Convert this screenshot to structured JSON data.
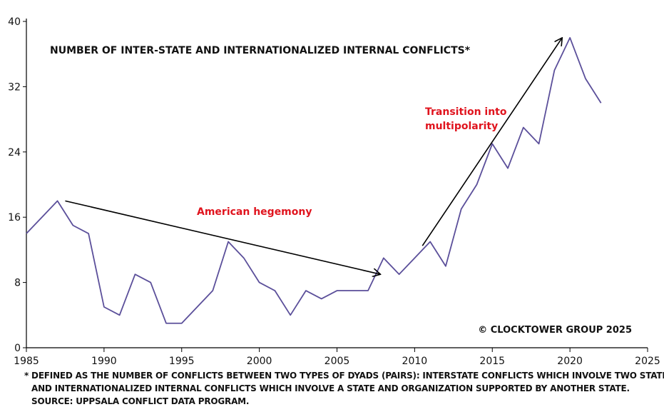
{
  "chart_data": {
    "type": "line",
    "title": "NUMBER OF INTER-STATE AND INTERNATIONALIZED INTERNAL CONFLICTS*",
    "xlabel": "",
    "ylabel": "",
    "xlim": [
      1985,
      2025
    ],
    "ylim": [
      0,
      40
    ],
    "x_ticks": [
      1985,
      1990,
      1995,
      2000,
      2005,
      2010,
      2015,
      2020,
      2025
    ],
    "y_ticks": [
      0,
      8,
      16,
      24,
      32,
      40
    ],
    "grid": false,
    "series": [
      {
        "color": "#5b4f9a",
        "x": [
          1985,
          1986,
          1987,
          1988,
          1989,
          1990,
          1991,
          1992,
          1993,
          1994,
          1995,
          1996,
          1997,
          1998,
          1999,
          2000,
          2001,
          2002,
          2003,
          2004,
          2005,
          2006,
          2007,
          2008,
          2009,
          2010,
          2011,
          2012,
          2013,
          2014,
          2015,
          2016,
          2017,
          2018,
          2019,
          2020,
          2021,
          2022
        ],
        "y": [
          14,
          16,
          18,
          15,
          14,
          5,
          4,
          9,
          8,
          3,
          3,
          5,
          7,
          13,
          11,
          8,
          7,
          4,
          7,
          6,
          7,
          7,
          7,
          11,
          9,
          11,
          13,
          10,
          17,
          20,
          25,
          22,
          27,
          25,
          34,
          38,
          33,
          30
        ]
      }
    ],
    "annotations": [
      {
        "text": "American hegemony",
        "color": "#e0141e",
        "arrow_from": [
          1987.5,
          18
        ],
        "arrow_to": [
          2007.8,
          9
        ]
      },
      {
        "text_lines": [
          "Transition into",
          "multipolarity"
        ],
        "color": "#e0141e",
        "arrow_from": [
          2010.5,
          12.5
        ],
        "arrow_to": [
          2019.5,
          38
        ]
      }
    ]
  },
  "copyright": "© CLOCKTOWER GROUP 2025",
  "footnote": {
    "line1": "* DEFINED AS THE NUMBER OF CONFLICTS BETWEEN TWO TYPES OF DYADS (PAIRS): INTERSTATE CONFLICTS WHICH INVOLVE TWO STATES,",
    "line2": "AND INTERNATIONALIZED INTERNAL CONFLICTS WHICH INVOLVE A STATE AND ORGANIZATION SUPPORTED BY ANOTHER STATE.",
    "line3": "SOURCE: UPPSALA CONFLICT DATA PROGRAM."
  }
}
